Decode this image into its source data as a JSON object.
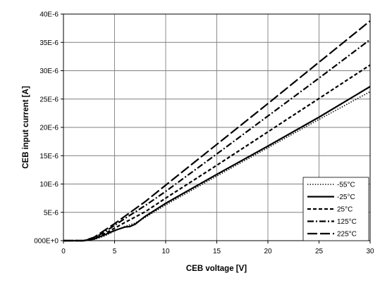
{
  "chart_data": {
    "type": "line",
    "title": "",
    "xlabel": "CEB voltage [V]",
    "ylabel": "CEB input current [A]",
    "xlim": [
      0,
      30
    ],
    "ylim": [
      0,
      4e-05
    ],
    "x_ticks": [
      0,
      5,
      10,
      15,
      20,
      25,
      30
    ],
    "x_tick_labels": [
      "0",
      "5",
      "10",
      "15",
      "20",
      "25",
      "30"
    ],
    "y_ticks": [
      0,
      5e-06,
      1e-05,
      1.5e-05,
      2e-05,
      2.5e-05,
      3e-05,
      3.5e-05,
      4e-05
    ],
    "y_tick_labels": [
      "000E+0",
      "5E-6",
      "10E-6",
      "15E-6",
      "20E-6",
      "25E-6",
      "30E-6",
      "35E-6",
      "40E-6"
    ],
    "grid": true,
    "legend_position": "bottom-right",
    "colors": {
      "lines": "#000000",
      "grid": "#7f7f7f",
      "axis": "#000000"
    },
    "series": [
      {
        "name": "-55°C",
        "dash": "dotted",
        "x": [
          0,
          2,
          3,
          4,
          5,
          6,
          7,
          8,
          10,
          15,
          20,
          25,
          30
        ],
        "y": [
          0,
          0,
          2e-07,
          8e-07,
          1.7e-06,
          2.5e-06,
          3.1e-06,
          4.1e-06,
          6.3e-06,
          1.14e-05,
          1.64e-05,
          2.14e-05,
          2.63e-05
        ]
      },
      {
        "name": "-25°C",
        "dash": "solid",
        "x": [
          0,
          2,
          3,
          4,
          5,
          6,
          6.5,
          7,
          8,
          10,
          15,
          20,
          25,
          30
        ],
        "y": [
          0,
          0,
          3e-07,
          1e-06,
          1.8e-06,
          2.4e-06,
          2.5e-06,
          2.9e-06,
          4.3e-06,
          6.6e-06,
          1.17e-05,
          1.67e-05,
          2.18e-05,
          2.72e-05
        ]
      },
      {
        "name": "25°C",
        "dash": "dashed",
        "x": [
          0,
          2,
          3,
          4,
          5,
          6,
          8,
          10,
          15,
          20,
          25,
          30
        ],
        "y": [
          0,
          0,
          4e-07,
          1.2e-06,
          2.2e-06,
          3.2e-06,
          5.1e-06,
          7.5e-06,
          1.33e-05,
          1.92e-05,
          2.51e-05,
          3.1e-05
        ]
      },
      {
        "name": "125°C",
        "dash": "dashdot",
        "x": [
          0,
          2,
          3,
          4,
          5,
          6,
          8,
          10,
          15,
          20,
          25,
          30
        ],
        "y": [
          0,
          0,
          5e-07,
          1.5e-06,
          2.7e-06,
          3.9e-06,
          6.2e-06,
          8.7e-06,
          1.53e-05,
          2.2e-05,
          2.87e-05,
          3.55e-05
        ]
      },
      {
        "name": "225°C",
        "dash": "longdash",
        "x": [
          0,
          2,
          3,
          4,
          5,
          6,
          8,
          10,
          15,
          20,
          25,
          30
        ],
        "y": [
          0,
          0,
          6e-07,
          1.8e-06,
          3e-06,
          4.3e-06,
          6.9e-06,
          9.8e-06,
          1.7e-05,
          2.42e-05,
          3.15e-05,
          3.88e-05
        ]
      }
    ]
  }
}
